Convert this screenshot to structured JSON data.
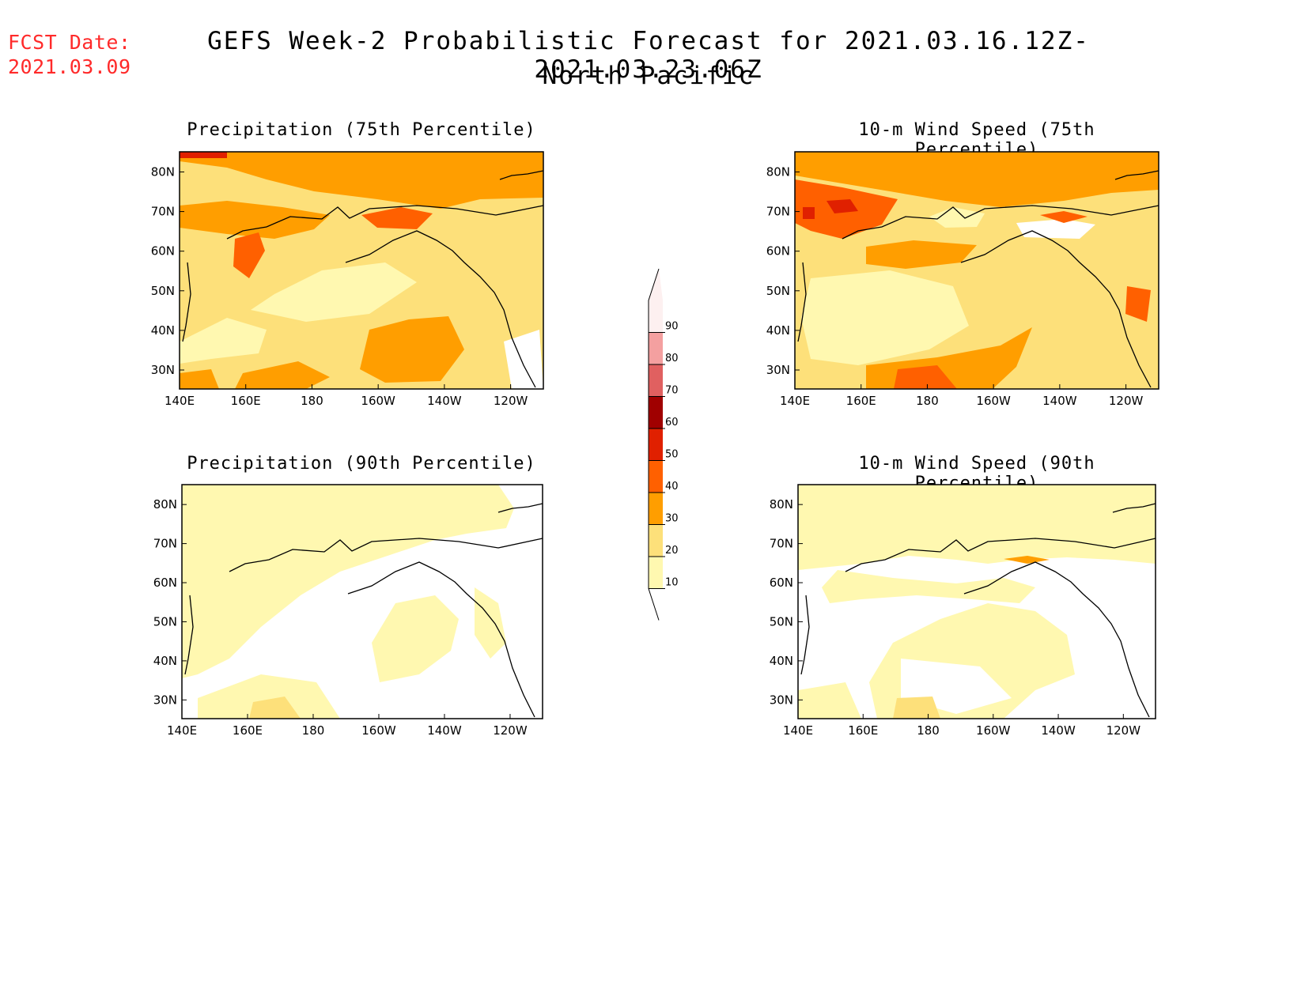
{
  "header": {
    "fcst_label": "FCST Date:",
    "fcst_date": "2021.03.09",
    "title_line1": "GEFS Week-2 Probabilistic Forecast for 2021.03.16.12Z-2021.03.23.06Z",
    "title_line2": "North Pacific"
  },
  "panels": [
    {
      "id": "precip75",
      "title": "Precipitation (75th Percentile)"
    },
    {
      "id": "wind75",
      "title": "10-m Wind Speed (75th Percentile)"
    },
    {
      "id": "precip90",
      "title": "Precipitation (90th Percentile)"
    },
    {
      "id": "wind90",
      "title": "10-m Wind Speed (90th Percentile)"
    }
  ],
  "axes": {
    "lon_labels": [
      "140E",
      "160E",
      "180",
      "160W",
      "140W",
      "120W"
    ],
    "lat_labels": [
      "80N",
      "70N",
      "60N",
      "50N",
      "40N",
      "30N"
    ]
  },
  "colorbar": {
    "levels": [
      "90",
      "80",
      "70",
      "60",
      "50",
      "40",
      "30",
      "20",
      "10"
    ],
    "colors": [
      "#fdf0f0",
      "#f4a0a0",
      "#e06060",
      "#a00000",
      "#e02000",
      "#ff6000",
      "#ff9e00",
      "#fde07a",
      "#fff8b0"
    ]
  }
}
